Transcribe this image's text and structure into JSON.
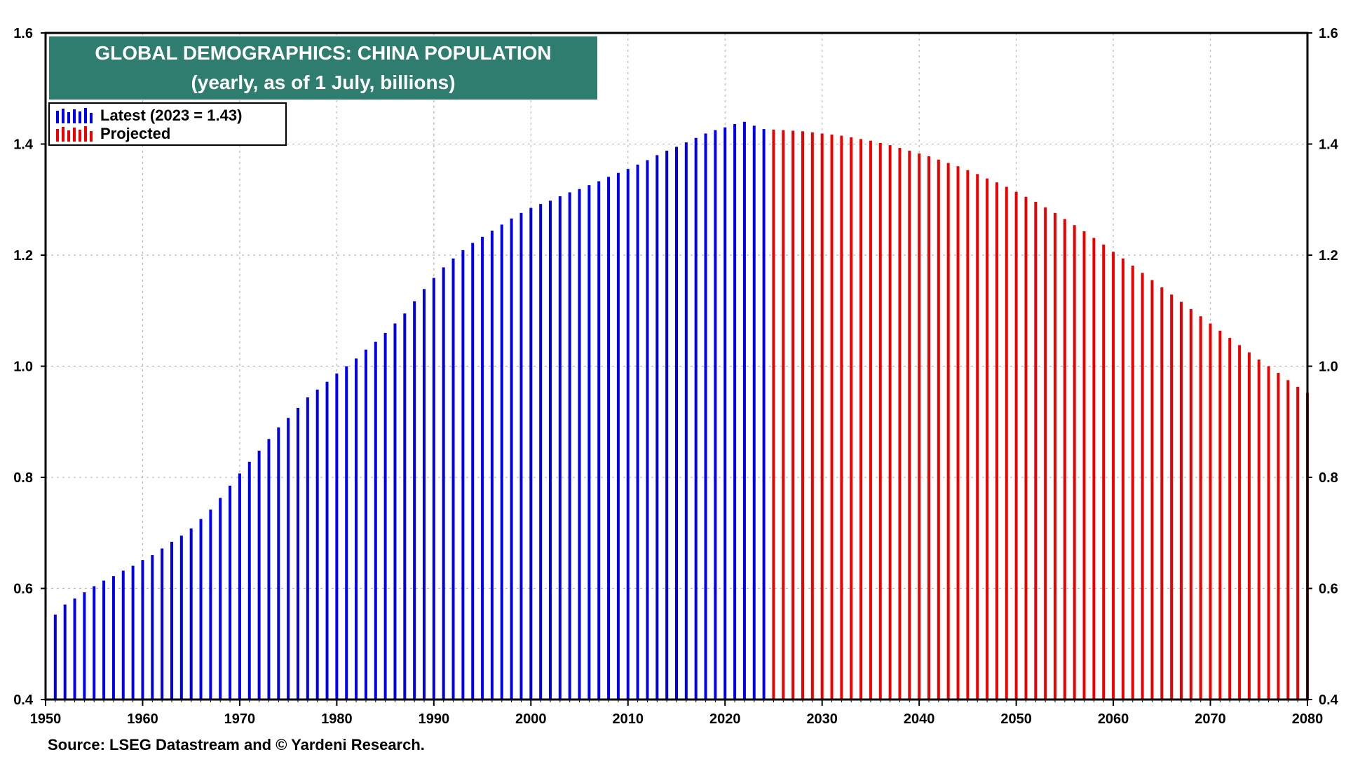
{
  "title": {
    "line1": "GLOBAL DEMOGRAPHICS: CHINA POPULATION",
    "line2": "(yearly, as of 1 July, billions)"
  },
  "legend": [
    {
      "label": "Latest (2023 = 1.43)",
      "color": "#0000ee"
    },
    {
      "label": "Projected",
      "color": "#ee0000"
    }
  ],
  "source": "Source: LSEG Datastream and © Yardeni Research.",
  "colors": {
    "latest": "#0000ee",
    "projected": "#ee0000",
    "title_bg": "#2e7d6e",
    "grid": "#bbbbbb"
  },
  "chart_data": {
    "type": "bar",
    "grid": true,
    "legend_position": "top-left",
    "xlim": [
      1950,
      2080
    ],
    "ylim": [
      0.4,
      1.6
    ],
    "x_ticks": [
      "1950",
      "1960",
      "1970",
      "1980",
      "1990",
      "2000",
      "2010",
      "2020",
      "2030",
      "2040",
      "2050",
      "2060",
      "2070",
      "2080"
    ],
    "y_ticks": [
      "0.4",
      "0.6",
      "0.8",
      "1.0",
      "1.2",
      "1.4",
      "1.6"
    ],
    "series": [
      {
        "name": "Latest (2023 = 1.43)",
        "x_start": 1951,
        "values": [
          0.553,
          0.571,
          0.582,
          0.593,
          0.604,
          0.614,
          0.622,
          0.632,
          0.641,
          0.651,
          0.66,
          0.672,
          0.684,
          0.695,
          0.708,
          0.725,
          0.742,
          0.763,
          0.785,
          0.807,
          0.828,
          0.848,
          0.869,
          0.89,
          0.907,
          0.925,
          0.944,
          0.958,
          0.972,
          0.987,
          1.0,
          1.014,
          1.03,
          1.044,
          1.06,
          1.077,
          1.095,
          1.117,
          1.139,
          1.159,
          1.178,
          1.194,
          1.209,
          1.222,
          1.233,
          1.244,
          1.255,
          1.266,
          1.276,
          1.285,
          1.292,
          1.298,
          1.306,
          1.313,
          1.319,
          1.326,
          1.333,
          1.341,
          1.348,
          1.355,
          1.363,
          1.371,
          1.38,
          1.388,
          1.395,
          1.403,
          1.411,
          1.419,
          1.425,
          1.43,
          1.436,
          1.44,
          1.433,
          1.427
        ]
      },
      {
        "name": "Projected",
        "x_start": 2025,
        "values": [
          1.426,
          1.425,
          1.424,
          1.423,
          1.421,
          1.419,
          1.417,
          1.415,
          1.412,
          1.409,
          1.406,
          1.402,
          1.398,
          1.393,
          1.388,
          1.383,
          1.378,
          1.372,
          1.366,
          1.36,
          1.353,
          1.346,
          1.338,
          1.331,
          1.323,
          1.314,
          1.305,
          1.296,
          1.286,
          1.276,
          1.265,
          1.254,
          1.243,
          1.231,
          1.219,
          1.206,
          1.194,
          1.181,
          1.168,
          1.155,
          1.142,
          1.129,
          1.116,
          1.103,
          1.09,
          1.077,
          1.064,
          1.051,
          1.038,
          1.025,
          1.012,
          1.0,
          0.988,
          0.975,
          0.963,
          0.952
        ]
      }
    ]
  }
}
